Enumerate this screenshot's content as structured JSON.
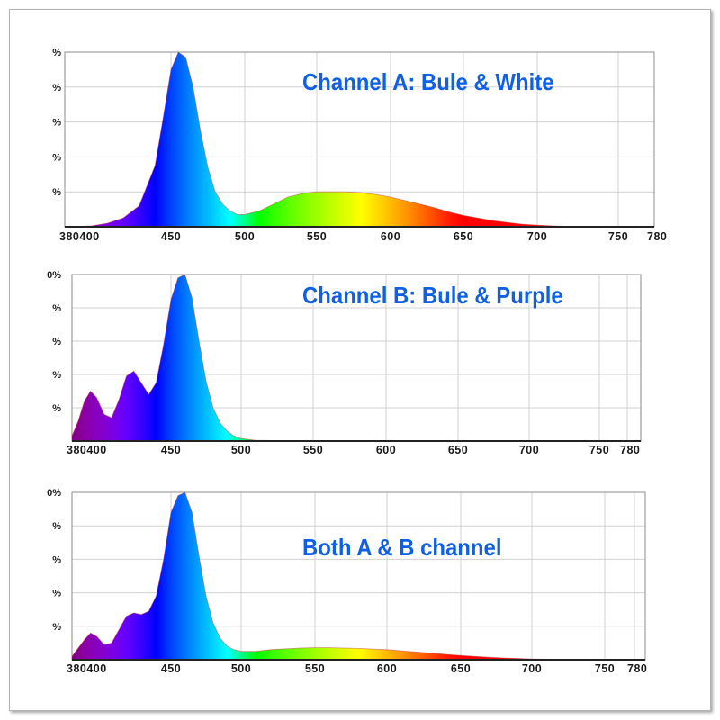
{
  "colors": {
    "title": "#0f60e6",
    "grid": "#d0d0d0",
    "axis": "#8c8c8c",
    "outline": "#c74a4a"
  },
  "chart_data": [
    {
      "type": "area",
      "title": "Channel A: Bule & White",
      "xlabel": "",
      "ylabel": "",
      "xlim": [
        380,
        780
      ],
      "ylim": [
        0,
        100
      ],
      "grid": true,
      "fill": "visible-spectrum gradient",
      "x_tick_labels": [
        "380400",
        "450",
        "500",
        "550",
        "600",
        "650",
        "700",
        "750",
        "780"
      ],
      "y_tick_labels": [
        "%",
        "%",
        "%",
        "%",
        "%"
      ],
      "series": [
        {
          "x": [
            380,
            400,
            410,
            420,
            430,
            440,
            445,
            450,
            455,
            460,
            465,
            470,
            475,
            480,
            485,
            490,
            495,
            500,
            510,
            520,
            530,
            540,
            550,
            560,
            570,
            580,
            590,
            600,
            610,
            620,
            630,
            640,
            650,
            660,
            670,
            680,
            690,
            700,
            710,
            720,
            740,
            760,
            780
          ],
          "values": [
            0,
            0.5,
            2,
            5,
            12,
            35,
            62,
            90,
            100,
            97,
            80,
            55,
            34,
            20,
            13,
            9,
            7,
            7,
            9,
            13,
            17,
            19,
            20,
            20,
            20,
            19.5,
            18.5,
            17,
            15,
            13,
            11,
            8.5,
            6.5,
            5,
            3.5,
            2.5,
            1.5,
            1,
            0.5,
            0.2,
            0,
            0,
            0
          ]
        }
      ]
    },
    {
      "type": "area",
      "title": "Channel B: Bule & Purple",
      "xlabel": "",
      "ylabel": "",
      "xlim": [
        380,
        780
      ],
      "ylim": [
        0,
        100
      ],
      "grid": true,
      "fill": "visible-spectrum gradient",
      "x_tick_labels": [
        "380400",
        "450",
        "500",
        "550",
        "600",
        "650",
        "700",
        "750",
        "780"
      ],
      "y_tick_labels": [
        "0%",
        "%",
        "%",
        "%",
        "%"
      ],
      "series": [
        {
          "x": [
            380,
            385,
            390,
            395,
            400,
            405,
            410,
            415,
            420,
            425,
            430,
            435,
            440,
            445,
            450,
            455,
            460,
            465,
            470,
            475,
            480,
            485,
            490,
            495,
            500,
            510,
            520,
            540,
            560,
            600,
            650,
            700,
            780
          ],
          "values": [
            3,
            12,
            24,
            30,
            26,
            16,
            14,
            25,
            39,
            42,
            35,
            28,
            35,
            58,
            85,
            98,
            100,
            86,
            60,
            36,
            20,
            11,
            6,
            3,
            1.5,
            0.5,
            0.3,
            0.2,
            0.1,
            0,
            0,
            0,
            0
          ]
        }
      ]
    },
    {
      "type": "area",
      "title": "Both A & B channel",
      "xlabel": "",
      "ylabel": "",
      "xlim": [
        380,
        780
      ],
      "ylim": [
        0,
        100
      ],
      "grid": true,
      "fill": "visible-spectrum gradient",
      "x_tick_labels": [
        "380400",
        "450",
        "500",
        "550",
        "600",
        "650",
        "700",
        "750",
        "780"
      ],
      "y_tick_labels": [
        "0%",
        "%",
        "%",
        "%",
        "%"
      ],
      "series": [
        {
          "x": [
            380,
            385,
            390,
            395,
            400,
            405,
            410,
            415,
            420,
            425,
            430,
            435,
            440,
            445,
            450,
            455,
            460,
            465,
            470,
            475,
            480,
            485,
            490,
            495,
            500,
            510,
            520,
            530,
            540,
            550,
            560,
            570,
            580,
            590,
            600,
            610,
            620,
            630,
            640,
            650,
            660,
            670,
            680,
            690,
            700,
            710,
            720,
            740,
            780
          ],
          "values": [
            2,
            7,
            12,
            16,
            14,
            9,
            10,
            18,
            26,
            28,
            27,
            29,
            38,
            60,
            88,
            98,
            100,
            88,
            62,
            38,
            22,
            13,
            8,
            6,
            5,
            5,
            6,
            6.5,
            7,
            7.2,
            7.2,
            7,
            6.8,
            6.4,
            6,
            5.3,
            4.6,
            3.9,
            3.2,
            2.6,
            2,
            1.5,
            1.1,
            0.8,
            0.5,
            0.3,
            0.2,
            0,
            0
          ]
        }
      ]
    }
  ]
}
